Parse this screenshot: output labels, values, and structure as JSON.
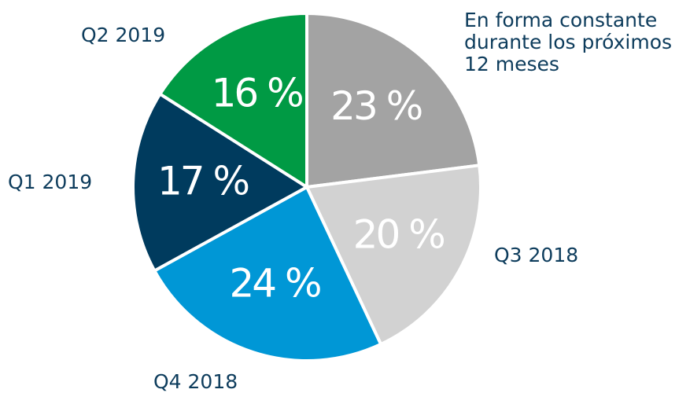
{
  "chart_data": {
    "type": "pie",
    "categories": [
      "En forma constante durante los próximos 12 meses",
      "Q3 2018",
      "Q4 2018",
      "Q1 2019",
      "Q2 2019"
    ],
    "values": [
      23,
      20,
      24,
      17,
      16
    ],
    "value_labels": [
      "23 %",
      "20 %",
      "24 %",
      "17 %",
      "16 %"
    ],
    "colors": [
      "#a3a3a3",
      "#d2d2d2",
      "#0097d6",
      "#003b5e",
      "#009a44"
    ]
  }
}
